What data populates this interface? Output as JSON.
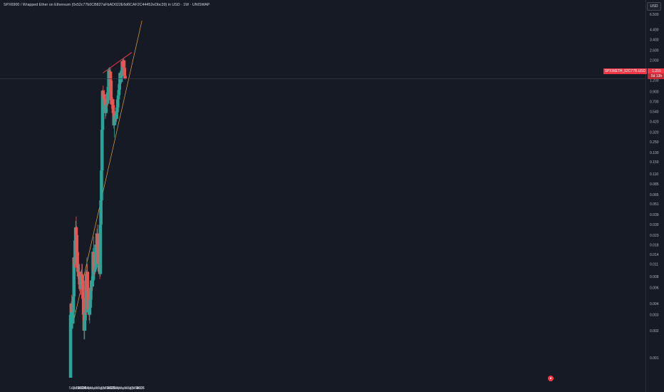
{
  "header": {
    "title": "SPX6900 / Wrapped Ether on Ethereum (0x52c77b0CB827aFbAD022E6d6CAF2C44452eDbc39) in USD · 1W · UNISWAP"
  },
  "price_axis": {
    "currency_button": "USD"
  },
  "last_price": {
    "symbol_label": "SPXWETH_52C77B.USD",
    "value_label": "1.255",
    "countdown": "5d 13h"
  },
  "events": {
    "marker_glyph": "●"
  },
  "colors": {
    "background": "#161a25",
    "up_candle": "#26a69a",
    "down_candle": "#ef5350",
    "support_trendline": "#e8a23a",
    "resistance_trendline": "#f23645",
    "axis_text": "#b2b5be"
  },
  "chart_data": {
    "type": "candlestick",
    "title": "SPX6900 / Wrapped Ether on Ethereum (0x52c77b0CB827aFbAD022E6d6CAF2C44452eDbc39) in USD · 1W · UNISWAP",
    "interval": "1W",
    "y_scale": "log",
    "ylim": [
      0.0006,
      6.5
    ],
    "y_ticks": [
      "6.500",
      "4.400",
      "3.400",
      "2.600",
      "2.000",
      "1.550",
      "1.200",
      "0.900",
      "0.700",
      "0.540",
      "0.420",
      "0.320",
      "0.250",
      "0.190",
      "0.150",
      "0.110",
      "0.085",
      "0.065",
      "0.051",
      "0.039",
      "0.030",
      "0.023",
      "0.018",
      "0.014",
      "0.011",
      "0.008",
      "0.006",
      "0.004",
      "0.003",
      "0.002",
      "0.001"
    ],
    "x_ticks": [
      {
        "label": "Sep",
        "date": "2023-09-01"
      },
      {
        "label": "Oct",
        "date": "2023-10-01"
      },
      {
        "label": "Nov",
        "date": "2023-11-01"
      },
      {
        "label": "Dec",
        "date": "2023-12-01"
      },
      {
        "label": "2024",
        "date": "2024-01-01"
      },
      {
        "label": "Feb",
        "date": "2024-02-01"
      },
      {
        "label": "Mar",
        "date": "2024-03-01"
      },
      {
        "label": "Apr",
        "date": "2024-04-01"
      },
      {
        "label": "May",
        "date": "2024-05-01"
      },
      {
        "label": "Jun",
        "date": "2024-06-01"
      },
      {
        "label": "Jul",
        "date": "2024-07-01"
      },
      {
        "label": "Aug",
        "date": "2024-08-01"
      },
      {
        "label": "Sep",
        "date": "2024-09-01"
      },
      {
        "label": "Oct",
        "date": "2024-10-01"
      },
      {
        "label": "Nov",
        "date": "2024-11-01"
      },
      {
        "label": "Dec",
        "date": "2024-12-01"
      },
      {
        "label": "2025",
        "date": "2025-01-01"
      },
      {
        "label": "Feb",
        "date": "2025-02-01"
      },
      {
        "label": "Mar",
        "date": "2025-03-01"
      },
      {
        "label": "Apr",
        "date": "2025-04-01"
      },
      {
        "label": "May",
        "date": "2025-05-01"
      },
      {
        "label": "Jun",
        "date": "2025-06-01"
      },
      {
        "label": "Jul",
        "date": "2025-07-01"
      },
      {
        "label": "Aug",
        "date": "2025-08-01"
      },
      {
        "label": "Sep",
        "date": "2025-09-01"
      },
      {
        "label": "Oct",
        "date": "2025-10-01"
      },
      {
        "label": "Nov",
        "date": "2025-11-01"
      },
      {
        "label": "Dec",
        "date": "2025-12-01"
      },
      {
        "label": "2026",
        "date": "2026-01-01"
      }
    ],
    "candles": [
      {
        "date": "2023-08-15",
        "o": 0.0006,
        "h": 0.003,
        "l": 0.0006,
        "c": 0.003
      },
      {
        "date": "2023-08-22",
        "o": 0.003,
        "h": 0.0042,
        "l": 0.0022,
        "c": 0.004
      },
      {
        "date": "2023-08-29",
        "o": 0.004,
        "h": 0.005,
        "l": 0.0026,
        "c": 0.0032
      },
      {
        "date": "2023-09-05",
        "o": 0.0032,
        "h": 0.0045,
        "l": 0.0021,
        "c": 0.0024
      },
      {
        "date": "2023-09-12",
        "o": 0.0024,
        "h": 0.0034,
        "l": 0.0021,
        "c": 0.0032
      },
      {
        "date": "2023-09-19",
        "o": 0.0032,
        "h": 0.005,
        "l": 0.0028,
        "c": 0.0048
      },
      {
        "date": "2023-09-26",
        "o": 0.0048,
        "h": 0.014,
        "l": 0.0045,
        "c": 0.013
      },
      {
        "date": "2023-10-03",
        "o": 0.013,
        "h": 0.019,
        "l": 0.01,
        "c": 0.011
      },
      {
        "date": "2023-10-10",
        "o": 0.011,
        "h": 0.023,
        "l": 0.009,
        "c": 0.02
      },
      {
        "date": "2023-10-17",
        "o": 0.02,
        "h": 0.033,
        "l": 0.018,
        "c": 0.028
      },
      {
        "date": "2023-10-24",
        "o": 0.028,
        "h": 0.037,
        "l": 0.02,
        "c": 0.023
      },
      {
        "date": "2023-10-31",
        "o": 0.023,
        "h": 0.029,
        "l": 0.013,
        "c": 0.015
      },
      {
        "date": "2023-11-07",
        "o": 0.015,
        "h": 0.017,
        "l": 0.009,
        "c": 0.01
      },
      {
        "date": "2023-11-14",
        "o": 0.01,
        "h": 0.013,
        "l": 0.0075,
        "c": 0.009
      },
      {
        "date": "2023-11-21",
        "o": 0.009,
        "h": 0.011,
        "l": 0.0065,
        "c": 0.008
      },
      {
        "date": "2023-11-28",
        "o": 0.008,
        "h": 0.011,
        "l": 0.007,
        "c": 0.009
      },
      {
        "date": "2023-12-05",
        "o": 0.009,
        "h": 0.011,
        "l": 0.0055,
        "c": 0.0065
      },
      {
        "date": "2023-12-12",
        "o": 0.0065,
        "h": 0.009,
        "l": 0.005,
        "c": 0.0058
      },
      {
        "date": "2023-12-19",
        "o": 0.0058,
        "h": 0.008,
        "l": 0.005,
        "c": 0.0072
      },
      {
        "date": "2023-12-26",
        "o": 0.0072,
        "h": 0.0095,
        "l": 0.0065,
        "c": 0.0085
      },
      {
        "date": "2024-01-02",
        "o": 0.0085,
        "h": 0.011,
        "l": 0.0075,
        "c": 0.008
      },
      {
        "date": "2024-01-09",
        "o": 0.008,
        "h": 0.011,
        "l": 0.006,
        "c": 0.0072
      },
      {
        "date": "2024-01-16",
        "o": 0.0072,
        "h": 0.0085,
        "l": 0.0042,
        "c": 0.0045
      },
      {
        "date": "2024-01-23",
        "o": 0.0045,
        "h": 0.005,
        "l": 0.0025,
        "c": 0.003
      },
      {
        "date": "2024-01-30",
        "o": 0.003,
        "h": 0.0036,
        "l": 0.0016,
        "c": 0.002
      },
      {
        "date": "2024-02-06",
        "o": 0.002,
        "h": 0.0032,
        "l": 0.0016,
        "c": 0.0026
      },
      {
        "date": "2024-02-13",
        "o": 0.0026,
        "h": 0.005,
        "l": 0.0024,
        "c": 0.0046
      },
      {
        "date": "2024-02-20",
        "o": 0.0046,
        "h": 0.006,
        "l": 0.003,
        "c": 0.0032
      },
      {
        "date": "2024-02-27",
        "o": 0.0032,
        "h": 0.0095,
        "l": 0.003,
        "c": 0.0085
      },
      {
        "date": "2024-03-05",
        "o": 0.0085,
        "h": 0.013,
        "l": 0.007,
        "c": 0.009
      },
      {
        "date": "2024-03-12",
        "o": 0.009,
        "h": 0.011,
        "l": 0.005,
        "c": 0.0055
      },
      {
        "date": "2024-03-19",
        "o": 0.0055,
        "h": 0.007,
        "l": 0.0035,
        "c": 0.004
      },
      {
        "date": "2024-03-26",
        "o": 0.004,
        "h": 0.0055,
        "l": 0.003,
        "c": 0.0034
      },
      {
        "date": "2024-04-02",
        "o": 0.0034,
        "h": 0.005,
        "l": 0.0026,
        "c": 0.003
      },
      {
        "date": "2024-04-09",
        "o": 0.003,
        "h": 0.0042,
        "l": 0.0024,
        "c": 0.0036
      },
      {
        "date": "2024-04-16",
        "o": 0.0036,
        "h": 0.005,
        "l": 0.003,
        "c": 0.0044
      },
      {
        "date": "2024-04-23",
        "o": 0.0044,
        "h": 0.0065,
        "l": 0.0036,
        "c": 0.006
      },
      {
        "date": "2024-04-30",
        "o": 0.006,
        "h": 0.008,
        "l": 0.005,
        "c": 0.0072
      },
      {
        "date": "2024-05-07",
        "o": 0.0072,
        "h": 0.009,
        "l": 0.0055,
        "c": 0.0062
      },
      {
        "date": "2024-05-14",
        "o": 0.0062,
        "h": 0.008,
        "l": 0.0055,
        "c": 0.0072
      },
      {
        "date": "2024-05-21",
        "o": 0.0072,
        "h": 0.0165,
        "l": 0.0068,
        "c": 0.015
      },
      {
        "date": "2024-05-28",
        "o": 0.015,
        "h": 0.022,
        "l": 0.008,
        "c": 0.0095
      },
      {
        "date": "2024-06-04",
        "o": 0.0095,
        "h": 0.012,
        "l": 0.008,
        "c": 0.009
      },
      {
        "date": "2024-06-11",
        "o": 0.009,
        "h": 0.011,
        "l": 0.0075,
        "c": 0.0095
      },
      {
        "date": "2024-06-18",
        "o": 0.0095,
        "h": 0.012,
        "l": 0.0085,
        "c": 0.01
      },
      {
        "date": "2024-06-25",
        "o": 0.01,
        "h": 0.02,
        "l": 0.0095,
        "c": 0.018
      },
      {
        "date": "2024-07-02",
        "o": 0.018,
        "h": 0.021,
        "l": 0.011,
        "c": 0.012
      },
      {
        "date": "2024-07-09",
        "o": 0.012,
        "h": 0.027,
        "l": 0.0115,
        "c": 0.024
      },
      {
        "date": "2024-07-16",
        "o": 0.024,
        "h": 0.03,
        "l": 0.015,
        "c": 0.017
      },
      {
        "date": "2024-07-23",
        "o": 0.017,
        "h": 0.018,
        "l": 0.011,
        "c": 0.012
      },
      {
        "date": "2024-07-30",
        "o": 0.012,
        "h": 0.016,
        "l": 0.01,
        "c": 0.011
      },
      {
        "date": "2024-08-06",
        "o": 0.011,
        "h": 0.012,
        "l": 0.0085,
        "c": 0.009
      },
      {
        "date": "2024-08-13",
        "o": 0.009,
        "h": 0.01,
        "l": 0.0075,
        "c": 0.0085
      },
      {
        "date": "2024-08-20",
        "o": 0.0085,
        "h": 0.031,
        "l": 0.008,
        "c": 0.03
      },
      {
        "date": "2024-08-27",
        "o": 0.03,
        "h": 0.058,
        "l": 0.028,
        "c": 0.056
      },
      {
        "date": "2024-09-03",
        "o": 0.056,
        "h": 0.13,
        "l": 0.052,
        "c": 0.12
      },
      {
        "date": "2024-09-10",
        "o": 0.12,
        "h": 0.36,
        "l": 0.11,
        "c": 0.34
      },
      {
        "date": "2024-09-17",
        "o": 0.34,
        "h": 0.95,
        "l": 0.31,
        "c": 0.92
      },
      {
        "date": "2024-09-24",
        "o": 0.92,
        "h": 1.05,
        "l": 0.74,
        "c": 0.8
      },
      {
        "date": "2024-10-01",
        "o": 0.8,
        "h": 0.88,
        "l": 0.68,
        "c": 0.84
      },
      {
        "date": "2024-10-08",
        "o": 0.84,
        "h": 0.94,
        "l": 0.72,
        "c": 0.76
      },
      {
        "date": "2024-10-15",
        "o": 0.76,
        "h": 0.82,
        "l": 0.55,
        "c": 0.62
      },
      {
        "date": "2024-10-22",
        "o": 0.62,
        "h": 0.72,
        "l": 0.45,
        "c": 0.52
      },
      {
        "date": "2024-10-29",
        "o": 0.52,
        "h": 0.68,
        "l": 0.48,
        "c": 0.64
      },
      {
        "date": "2024-11-05",
        "o": 0.64,
        "h": 0.78,
        "l": 0.6,
        "c": 0.7
      },
      {
        "date": "2024-11-12",
        "o": 0.7,
        "h": 0.82,
        "l": 0.6,
        "c": 0.66
      },
      {
        "date": "2024-11-19",
        "o": 0.66,
        "h": 0.95,
        "l": 0.62,
        "c": 0.88
      },
      {
        "date": "2024-11-26",
        "o": 0.88,
        "h": 1.1,
        "l": 0.8,
        "c": 1.02
      },
      {
        "date": "2024-12-03",
        "o": 1.02,
        "h": 1.65,
        "l": 0.98,
        "c": 1.55
      },
      {
        "date": "2024-12-10",
        "o": 1.55,
        "h": 1.68,
        "l": 1.05,
        "c": 1.15
      },
      {
        "date": "2024-12-17",
        "o": 1.15,
        "h": 1.6,
        "l": 1.1,
        "c": 1.5
      },
      {
        "date": "2024-12-24",
        "o": 1.5,
        "h": 1.65,
        "l": 1.15,
        "c": 1.2
      },
      {
        "date": "2024-12-31",
        "o": 1.2,
        "h": 1.3,
        "l": 0.65,
        "c": 0.72
      },
      {
        "date": "2025-01-07",
        "o": 0.72,
        "h": 0.85,
        "l": 0.58,
        "c": 0.65
      },
      {
        "date": "2025-01-14",
        "o": 0.65,
        "h": 0.8,
        "l": 0.58,
        "c": 0.74
      },
      {
        "date": "2025-01-21",
        "o": 0.74,
        "h": 0.78,
        "l": 0.6,
        "c": 0.64
      },
      {
        "date": "2025-01-28",
        "o": 0.64,
        "h": 0.7,
        "l": 0.48,
        "c": 0.52
      },
      {
        "date": "2025-02-04",
        "o": 0.52,
        "h": 0.6,
        "l": 0.35,
        "c": 0.38
      },
      {
        "date": "2025-02-11",
        "o": 0.38,
        "h": 0.5,
        "l": 0.28,
        "c": 0.48
      },
      {
        "date": "2025-02-18",
        "o": 0.48,
        "h": 0.55,
        "l": 0.4,
        "c": 0.44
      },
      {
        "date": "2025-02-25",
        "o": 0.44,
        "h": 0.54,
        "l": 0.4,
        "c": 0.5
      },
      {
        "date": "2025-03-04",
        "o": 0.5,
        "h": 0.58,
        "l": 0.42,
        "c": 0.45
      },
      {
        "date": "2025-03-11",
        "o": 0.45,
        "h": 0.55,
        "l": 0.41,
        "c": 0.53
      },
      {
        "date": "2025-03-18",
        "o": 0.53,
        "h": 0.62,
        "l": 0.5,
        "c": 0.6
      },
      {
        "date": "2025-03-25",
        "o": 0.6,
        "h": 0.78,
        "l": 0.58,
        "c": 0.74
      },
      {
        "date": "2025-04-01",
        "o": 0.74,
        "h": 0.85,
        "l": 0.66,
        "c": 0.82
      },
      {
        "date": "2025-04-08",
        "o": 0.82,
        "h": 1.0,
        "l": 0.76,
        "c": 0.94
      },
      {
        "date": "2025-04-15",
        "o": 0.94,
        "h": 1.15,
        "l": 0.9,
        "c": 1.1
      },
      {
        "date": "2025-04-22",
        "o": 1.1,
        "h": 1.5,
        "l": 1.05,
        "c": 1.45
      },
      {
        "date": "2025-04-29",
        "o": 1.45,
        "h": 1.55,
        "l": 1.05,
        "c": 1.15
      },
      {
        "date": "2025-05-06",
        "o": 1.15,
        "h": 1.4,
        "l": 1.1,
        "c": 1.32
      },
      {
        "date": "2025-05-13",
        "o": 1.32,
        "h": 1.6,
        "l": 1.28,
        "c": 1.55
      },
      {
        "date": "2025-05-20",
        "o": 1.55,
        "h": 2.0,
        "l": 1.5,
        "c": 1.95
      },
      {
        "date": "2025-05-27",
        "o": 1.95,
        "h": 2.05,
        "l": 1.65,
        "c": 1.7
      },
      {
        "date": "2025-06-03",
        "o": 1.7,
        "h": 2.1,
        "l": 1.6,
        "c": 2.0
      },
      {
        "date": "2025-06-10",
        "o": 2.0,
        "h": 2.05,
        "l": 1.55,
        "c": 1.65
      },
      {
        "date": "2025-06-17",
        "o": 1.65,
        "h": 1.9,
        "l": 1.3,
        "c": 1.35
      },
      {
        "date": "2025-06-24",
        "o": 1.35,
        "h": 1.38,
        "l": 1.22,
        "c": 1.255
      }
    ],
    "trendlines": [
      {
        "name": "support",
        "color": "#e8a23a",
        "from": {
          "date": "2023-08-01",
          "price": 0.0016
        },
        "to": {
          "date": "2026-01-20",
          "price": 5.5
        }
      },
      {
        "name": "resistance",
        "color": "#f23645",
        "from": {
          "date": "2024-09-21",
          "price": 1.45
        },
        "to": {
          "date": "2025-09-15",
          "price": 2.45
        }
      }
    ],
    "last_price": 1.255,
    "grid": false,
    "legend": "none"
  }
}
